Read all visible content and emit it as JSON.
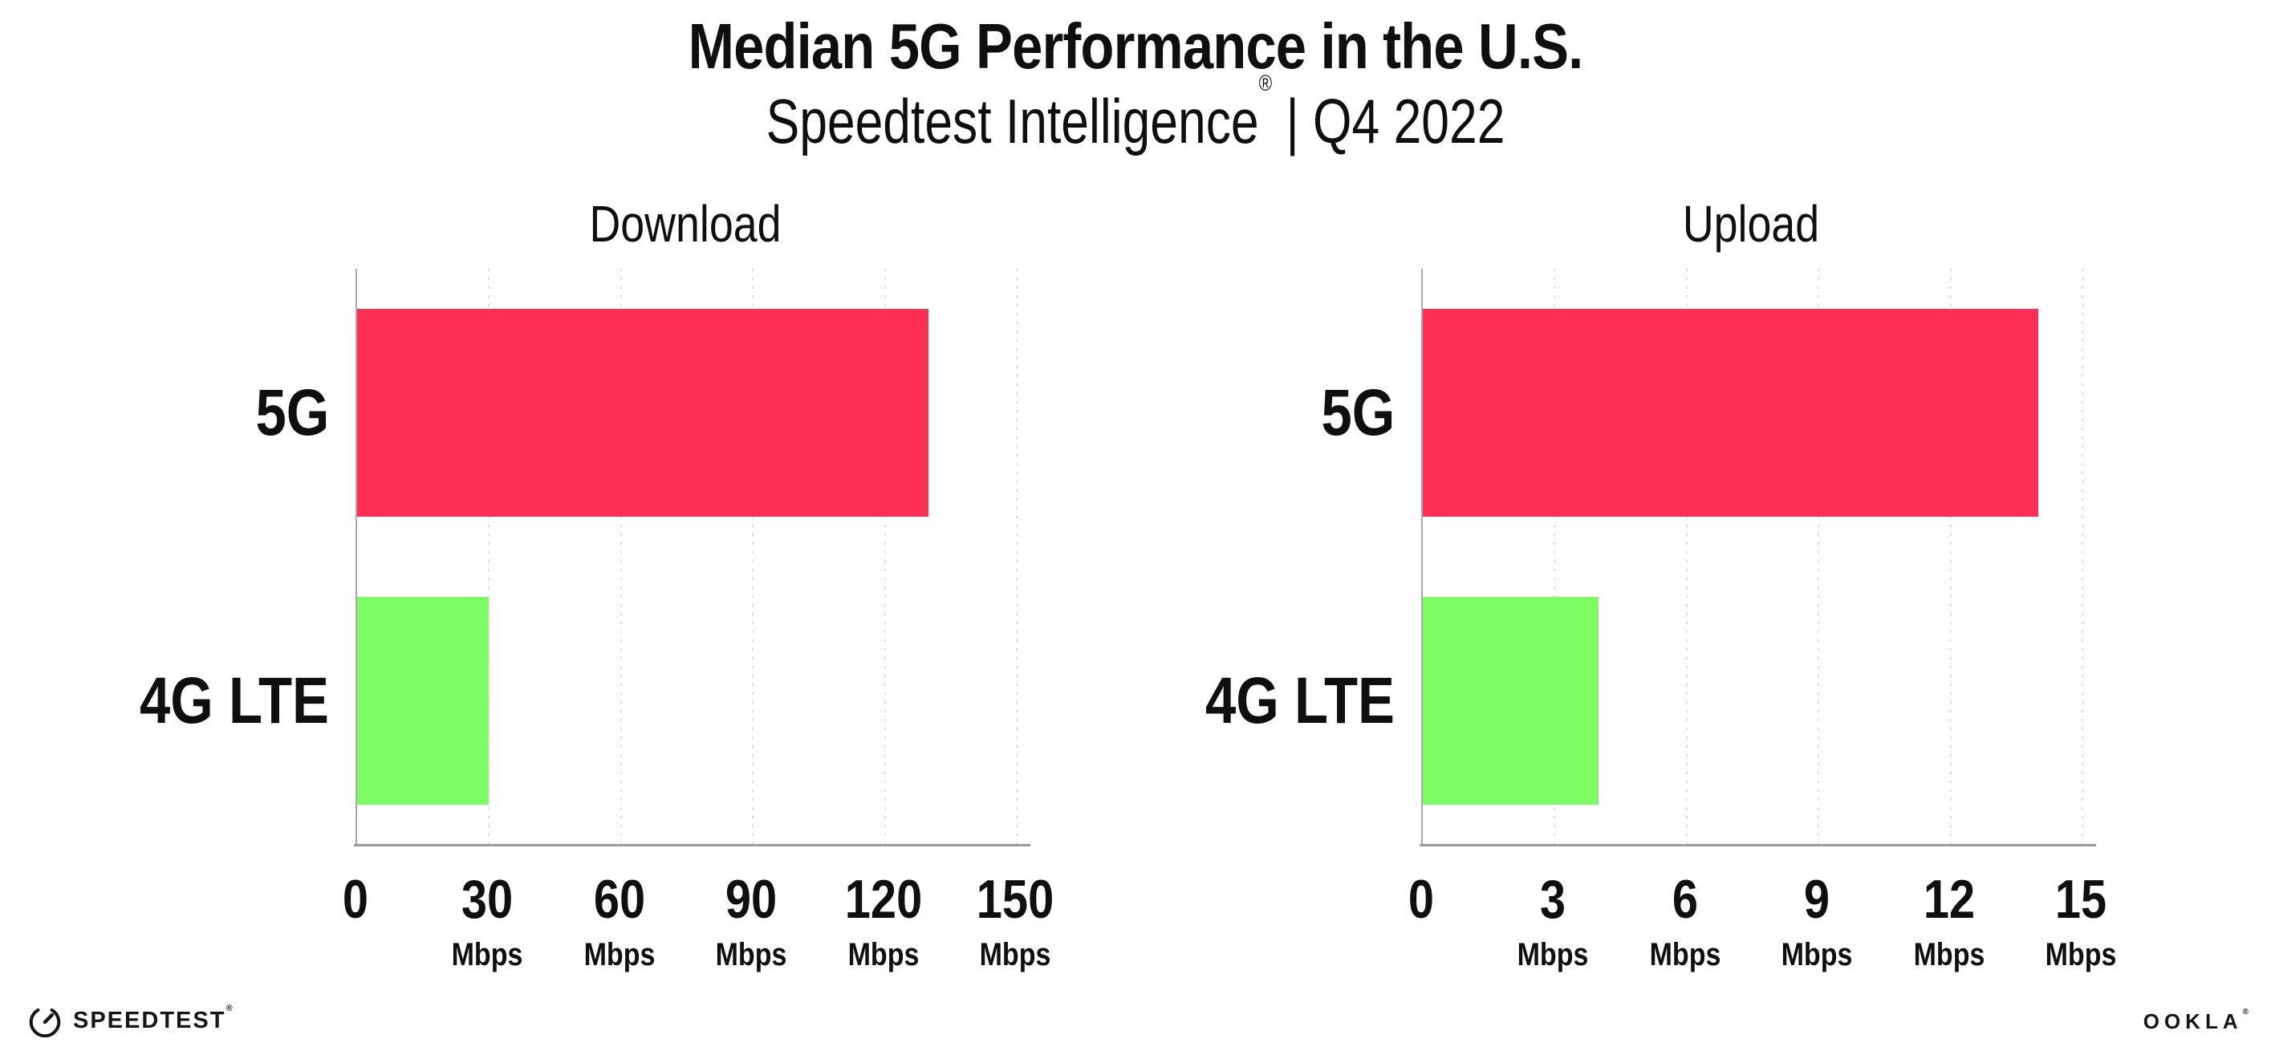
{
  "header": {
    "title": "Median 5G Performance in the U.S.",
    "subtitle_brand": "Speedtest Intelligence",
    "subtitle_reg": "®",
    "subtitle_rest": " | Q4 2022"
  },
  "chart_data": [
    {
      "type": "bar",
      "orientation": "horizontal",
      "title": "Download",
      "categories": [
        "5G",
        "4G LTE"
      ],
      "values": [
        130,
        30
      ],
      "unit": "Mbps",
      "xlabel": "",
      "ylabel": "",
      "xlim": [
        0,
        150
      ],
      "xticks": [
        0,
        30,
        60,
        90,
        120,
        150
      ],
      "bar_colors": [
        "#ff2e55",
        "#7dfc64"
      ],
      "grid": "dotted vertical gridlines at each tick",
      "legend": "none"
    },
    {
      "type": "bar",
      "orientation": "horizontal",
      "title": "Upload",
      "categories": [
        "5G",
        "4G LTE"
      ],
      "values": [
        14,
        4
      ],
      "unit": "Mbps",
      "xlabel": "",
      "ylabel": "",
      "xlim": [
        0,
        15
      ],
      "xticks": [
        0,
        3,
        6,
        9,
        12,
        15
      ],
      "bar_colors": [
        "#ff2e55",
        "#7dfc64"
      ],
      "grid": "dotted vertical gridlines at each tick",
      "legend": "none"
    }
  ],
  "footer": {
    "speedtest_wordmark": "SPEEDTEST",
    "speedtest_reg": "®",
    "ookla_wordmark": "OOKLA",
    "ookla_reg": "®"
  },
  "colors": {
    "bar_5g": "#ff2e55",
    "bar_4g_lte": "#7dfc64",
    "gridline": "#dcdce8",
    "x_axis": "#9b9b9b",
    "y_axis": "#a9a9ad",
    "text": "#0f0f0f",
    "background": "#ffffff"
  }
}
